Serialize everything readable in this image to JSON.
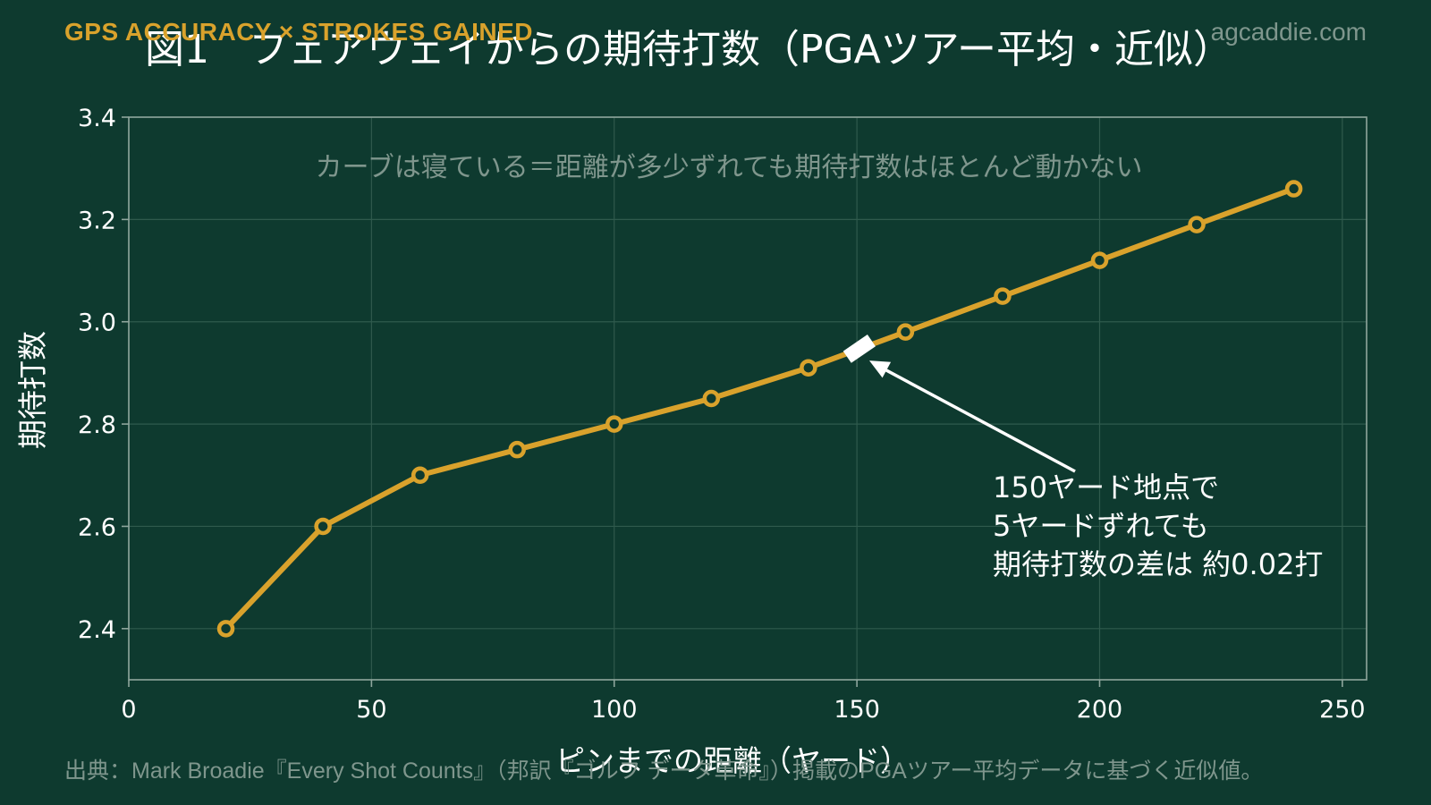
{
  "brand": "GPS ACCURACY × STROKES GAINED",
  "site": "agcaddie.com",
  "footer": "出典：Mark Broadie『Every Shot Counts』（邦訳『ゴルフ データ革命』）掲載のPGAツアー平均データに基づく近似値。",
  "colors": {
    "background": "#0e3a2f",
    "line": "#d9a22c",
    "marker_fill": "#0e3a2f",
    "grid": "#2f5a4d",
    "axis": "#8fa69d",
    "text": "#ffffff",
    "muted": "#7f968d",
    "highlight": "#ffffff"
  },
  "chart_data": {
    "type": "line",
    "title": "図1　フェアウェイからの期待打数（PGAツアー平均・近似）",
    "xlabel": "ピンまでの距離（ヤード）",
    "ylabel": "期待打数",
    "xlim": [
      0,
      255
    ],
    "ylim": [
      2.3,
      3.4
    ],
    "xticks": [
      0,
      50,
      100,
      150,
      200,
      250
    ],
    "yticks": [
      2.4,
      2.6,
      2.8,
      3.0,
      3.2,
      3.4
    ],
    "grid": true,
    "x": [
      20,
      40,
      60,
      80,
      100,
      120,
      140,
      160,
      180,
      200,
      220,
      240
    ],
    "series": [
      {
        "values": [
          2.4,
          2.6,
          2.7,
          2.75,
          2.8,
          2.85,
          2.91,
          2.98,
          3.05,
          3.12,
          3.19,
          3.26
        ]
      }
    ],
    "highlight_segment": {
      "x": [
        148,
        153
      ],
      "y": [
        2.945,
        2.96
      ]
    },
    "note": "カーブは寝ている＝距離が多少ずれても期待打数はほとんど動かない",
    "annotation": {
      "lines": [
        "150ヤード地点で",
        "5ヤードずれても",
        "期待打数の差は 約0.02打"
      ],
      "target": {
        "x": 152,
        "y": 2.945
      }
    }
  }
}
